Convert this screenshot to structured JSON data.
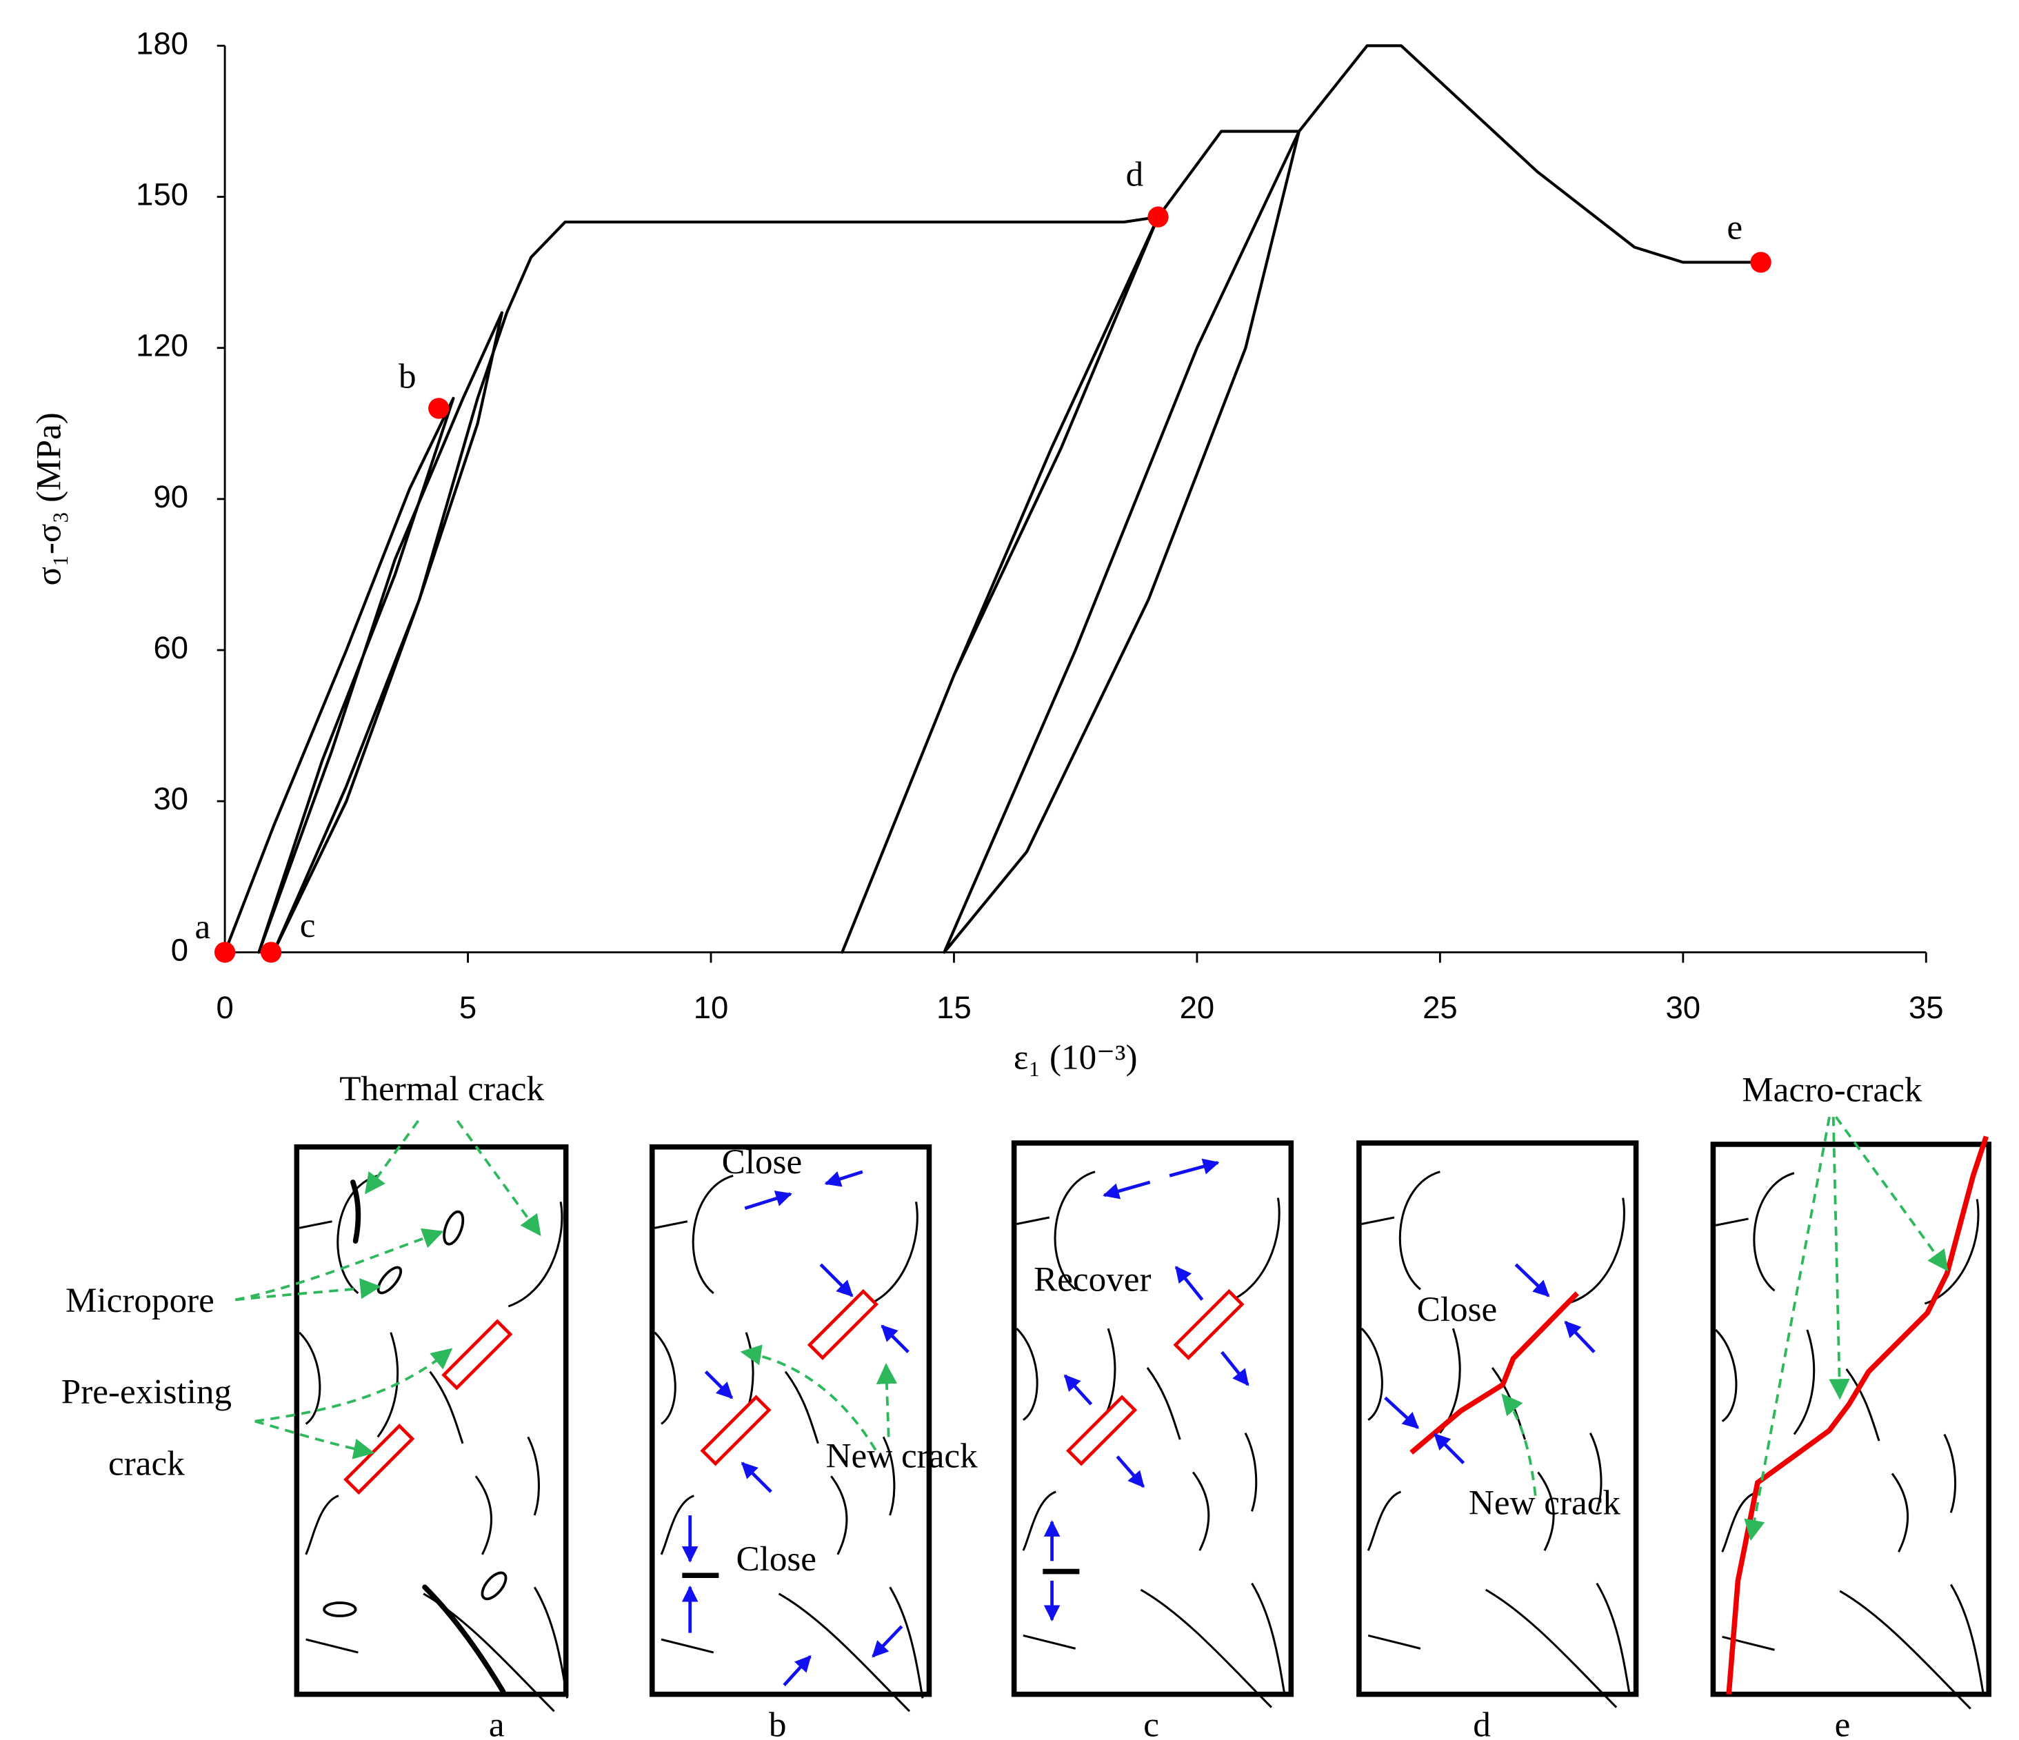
{
  "chart_data": {
    "type": "line",
    "xlabel": "ε₁ (10⁻³)",
    "ylabel": "σ₁-σ₃ (MPa)",
    "xlim": [
      0,
      35
    ],
    "xticks": [
      0,
      5,
      10,
      15,
      20,
      25,
      30,
      35
    ],
    "ylim": [
      0,
      180
    ],
    "yticks": [
      0,
      30,
      60,
      90,
      120,
      150,
      180
    ],
    "series": [
      {
        "color": "#000000",
        "x": [
          0,
          1,
          2.5,
          3.8,
          4.7,
          3.5,
          2,
          0.7,
          2.2,
          3.5,
          4.9,
          5.7,
          5.2,
          4,
          2.5,
          1,
          2.5,
          4,
          5.2,
          5.8,
          6.3,
          7,
          12,
          18.5,
          19.2,
          17,
          15,
          12.7,
          15,
          17.2,
          19.2,
          20.5,
          22.1,
          20,
          17.5,
          15.7,
          14.8,
          16.5,
          19,
          21,
          22.1,
          23.5,
          24.2,
          27,
          29,
          30,
          31.6
        ],
        "values": [
          0,
          25,
          60,
          92,
          110,
          75,
          38,
          0,
          40,
          78,
          110,
          127,
          105,
          70,
          33,
          0,
          30,
          70,
          110,
          127,
          138,
          145,
          145,
          145,
          146,
          100,
          55,
          0,
          55,
          100,
          146,
          163,
          163,
          120,
          60,
          20,
          0,
          20,
          70,
          120,
          163,
          180,
          180,
          155,
          140,
          137,
          137
        ]
      }
    ],
    "points": [
      {
        "label": "a",
        "x": 0,
        "y": 0
      },
      {
        "label": "b",
        "x": 4.4,
        "y": 108
      },
      {
        "label": "c",
        "x": 0.95,
        "y": 0
      },
      {
        "label": "d",
        "x": 19.2,
        "y": 146
      },
      {
        "label": "e",
        "x": 31.6,
        "y": 137
      }
    ],
    "point_color": "#ff0000"
  },
  "panels": {
    "captions": [
      "a",
      "b",
      "c",
      "d",
      "e"
    ],
    "annotations": [
      "Thermal crack",
      "Micropore",
      "Pre-existing",
      "crack",
      "Close",
      "New crack",
      "Close",
      "Recover",
      "Close",
      "New crack",
      "Macro-crack"
    ]
  }
}
